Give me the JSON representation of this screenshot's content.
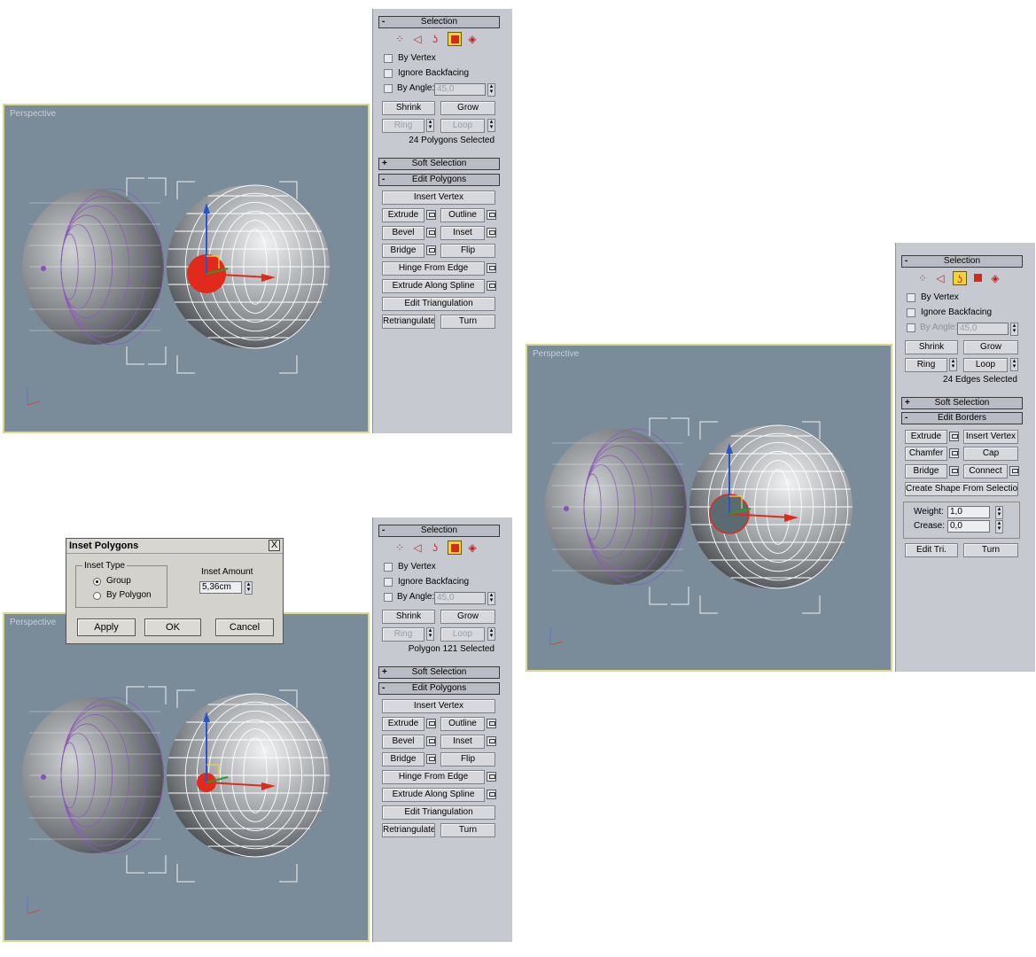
{
  "viewports": [
    {
      "id": "top-left",
      "label": "Perspective",
      "state": "big-red-face"
    },
    {
      "id": "bottom-left",
      "label": "Perspective",
      "state": "small-red-face"
    },
    {
      "id": "right",
      "label": "Perspective",
      "state": "hole-border"
    }
  ],
  "panel_top": {
    "selection_title": "Selection",
    "by_vertex": "By Vertex",
    "ignore_backfacing": "Ignore Backfacing",
    "by_angle": "By Angle:",
    "angle_value": "45,0",
    "shrink": "Shrink",
    "grow": "Grow",
    "ring": "Ring",
    "loop": "Loop",
    "status": "24 Polygons Selected",
    "soft_selection": "Soft Selection",
    "edit_title": "Edit Polygons",
    "insert_vertex": "Insert Vertex",
    "extrude": "Extrude",
    "outline": "Outline",
    "bevel": "Bevel",
    "inset": "Inset",
    "bridge": "Bridge",
    "flip": "Flip",
    "hinge": "Hinge From Edge",
    "extrude_spline": "Extrude Along Spline",
    "edit_tri": "Edit Triangulation",
    "retriangulate": "Retriangulate",
    "turn": "Turn"
  },
  "panel_bottom": {
    "selection_title": "Selection",
    "by_vertex": "By Vertex",
    "ignore_backfacing": "Ignore Backfacing",
    "by_angle": "By Angle:",
    "angle_value": "45,0",
    "shrink": "Shrink",
    "grow": "Grow",
    "ring": "Ring",
    "loop": "Loop",
    "status": "Polygon 121 Selected",
    "soft_selection": "Soft Selection",
    "edit_title": "Edit Polygons",
    "insert_vertex": "Insert Vertex",
    "extrude": "Extrude",
    "outline": "Outline",
    "bevel": "Bevel",
    "inset": "Inset",
    "bridge": "Bridge",
    "flip": "Flip",
    "hinge": "Hinge From Edge",
    "extrude_spline": "Extrude Along Spline",
    "edit_tri": "Edit Triangulation",
    "retriangulate": "Retriangulate",
    "turn": "Turn"
  },
  "panel_right": {
    "selection_title": "Selection",
    "by_vertex": "By Vertex",
    "ignore_backfacing": "Ignore Backfacing",
    "by_angle": "By Angle:",
    "angle_value": "45,0",
    "shrink": "Shrink",
    "grow": "Grow",
    "ring": "Ring",
    "loop": "Loop",
    "status": "24 Edges Selected",
    "soft_selection": "Soft Selection",
    "edit_title": "Edit Borders",
    "extrude": "Extrude",
    "insert_vertex": "Insert Vertex",
    "chamfer": "Chamfer",
    "cap": "Cap",
    "bridge": "Bridge",
    "connect": "Connect",
    "create_shape": "Create Shape From Selection",
    "weight_label": "Weight:",
    "weight_value": "1,0",
    "crease_label": "Crease:",
    "crease_value": "0,0",
    "edit_tri": "Edit Tri.",
    "turn": "Turn"
  },
  "dialog": {
    "title": "Inset Polygons",
    "close": "X",
    "inset_type": "Inset Type",
    "group": "Group",
    "by_polygon": "By Polygon",
    "inset_amount": "Inset Amount",
    "amount_value": "5,36cm",
    "apply": "Apply",
    "ok": "OK",
    "cancel": "Cancel"
  },
  "icons": {
    "vertex": "vertex-icon",
    "edge": "edge-icon",
    "border": "border-icon",
    "polygon": "polygon-icon",
    "element": "element-icon"
  },
  "colors": {
    "viewport_bg": "#7a8b9a",
    "viewport_border": "#d9d98a",
    "selection_red": "#e02a1c",
    "active_icon": "#f3d23a",
    "panel_bg": "#c6c9d0"
  }
}
